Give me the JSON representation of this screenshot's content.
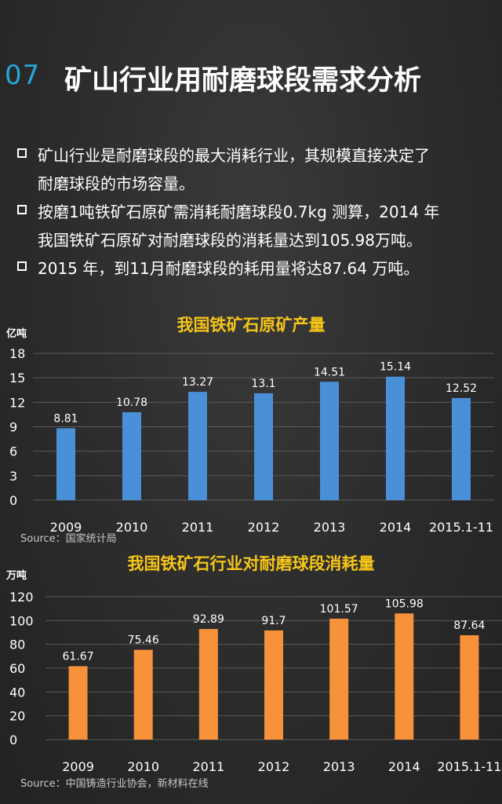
{
  "header": {
    "number": "07",
    "title": "矿山行业用耐磨球段需求分析"
  },
  "bullets": [
    [
      "矿山行业是耐磨球段的最大消耗行业，其规模直接决定了",
      "耐磨球段的市场容量。"
    ],
    [
      "按磨1吨铁矿石原矿需消耗耐磨球段0.7kg  测算，2014  年",
      "我国铁矿石原矿对耐磨球段的消耗量达到105.98万吨。"
    ],
    [
      "2015 年，到11月耐磨球段的耗用量将达87.64 万吨。"
    ]
  ],
  "chart_data": [
    {
      "type": "bar",
      "title": "我国铁矿石原矿产量",
      "ylabel": "亿吨",
      "categories": [
        "2009",
        "2010",
        "2011",
        "2012",
        "2013",
        "2014",
        "2015.1-11"
      ],
      "values": [
        8.81,
        10.78,
        13.27,
        13.1,
        14.51,
        15.14,
        12.52
      ],
      "value_labels": [
        "8.81",
        "10.78",
        "13.27",
        "13.1",
        "14.51",
        "15.14",
        "12.52"
      ],
      "ylim": [
        0,
        18
      ],
      "yticks": [
        0,
        3,
        6,
        9,
        12,
        15,
        18
      ],
      "grid": true,
      "color": "#4a90d9",
      "source": "Source：国家统计局"
    },
    {
      "type": "bar",
      "title": "我国铁矿石行业对耐磨球段消耗量",
      "ylabel": "万吨",
      "categories": [
        "2009",
        "2010",
        "2011",
        "2012",
        "2013",
        "2014",
        "2015.1-11"
      ],
      "values": [
        61.67,
        75.46,
        92.89,
        91.7,
        101.57,
        105.98,
        87.64
      ],
      "value_labels": [
        "61.67",
        "75.46",
        "92.89",
        "91.7",
        "101.57",
        "105.98",
        "87.64"
      ],
      "ylim": [
        0,
        120
      ],
      "yticks": [
        0,
        20,
        40,
        60,
        80,
        100,
        120
      ],
      "grid": true,
      "color": "#f7913a",
      "source": "Source：中国铸造行业协会，新材料在线"
    }
  ]
}
